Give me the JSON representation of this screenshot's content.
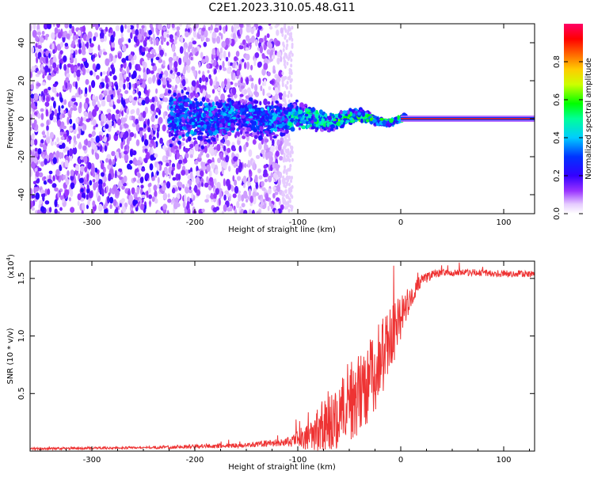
{
  "title": "C2E1.2023.310.05.48.G11",
  "chart_data": [
    {
      "type": "heatmap",
      "name": "spectrogram",
      "xlabel": "Height of straight line (km)",
      "ylabel": "Frequency (Hz)",
      "xlim": [
        -360,
        130
      ],
      "ylim": [
        -50,
        50
      ],
      "xticks": [
        -300,
        -200,
        -100,
        0,
        100
      ],
      "xtick_labels": [
        "-300",
        "-200",
        "-100",
        "0",
        "100"
      ],
      "yticks": [
        -40,
        -20,
        0,
        20,
        40
      ],
      "ytick_labels": [
        "-40",
        "-20",
        "0",
        "20",
        "40"
      ],
      "colorbar": {
        "label": "Normalized spectral amplitude",
        "range": [
          0,
          1
        ],
        "ticks": [
          0.0,
          0.2,
          0.4,
          0.6,
          0.8
        ],
        "tick_labels": [
          "0.0",
          "0.2",
          "0.4",
          "0.6",
          "0.8"
        ],
        "colormap": [
          "#ffffff",
          "#6a00ff",
          "#0000ff",
          "#00ffff",
          "#00ff00",
          "#ffff00",
          "#ff8000",
          "#ff0000",
          "#ff0066"
        ]
      },
      "signal_line": {
        "frequency": 0,
        "x_start": 0,
        "x_end": 130,
        "amplitude": 0.9
      },
      "noise_floor_end_km": -115
    },
    {
      "type": "line",
      "name": "snr",
      "xlabel": "Height of straight line (km)",
      "ylabel": "SNR (10 * v/v)",
      "multiplier_label": "(x10",
      "multiplier_exp": "4",
      "multiplier_close": ")",
      "xlim": [
        -360,
        130
      ],
      "ylim": [
        0,
        1.65
      ],
      "xticks": [
        -300,
        -200,
        -100,
        0,
        100
      ],
      "xtick_labels": [
        "-300",
        "-200",
        "-100",
        "0",
        "100"
      ],
      "yticks": [
        0.5,
        1.0,
        1.5
      ],
      "ytick_labels": [
        "0.5",
        "1.0",
        "1.5"
      ],
      "color": "#ee3333",
      "series": [
        {
          "name": "SNR",
          "x": [
            -360,
            -250,
            -200,
            -150,
            -110,
            -95,
            -80,
            -70,
            -60,
            -50,
            -40,
            -30,
            -20,
            -10,
            0,
            10,
            20,
            30,
            40,
            60,
            80,
            100,
            130
          ],
          "values": [
            0.02,
            0.03,
            0.04,
            0.05,
            0.08,
            0.12,
            0.18,
            0.25,
            0.35,
            0.42,
            0.5,
            0.62,
            0.78,
            0.95,
            1.15,
            1.35,
            1.48,
            1.53,
            1.55,
            1.55,
            1.55,
            1.54,
            1.54
          ],
          "noise": [
            0.01,
            0.01,
            0.02,
            0.02,
            0.04,
            0.1,
            0.2,
            0.3,
            0.35,
            0.35,
            0.35,
            0.35,
            0.35,
            0.3,
            0.2,
            0.1,
            0.05,
            0.04,
            0.03,
            0.03,
            0.03,
            0.03,
            0.03
          ]
        }
      ]
    }
  ]
}
